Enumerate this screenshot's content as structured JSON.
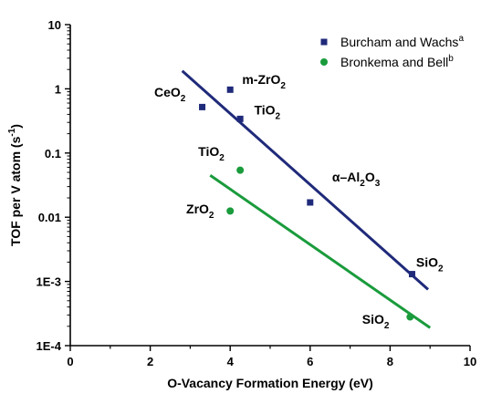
{
  "chart_data": {
    "type": "scatter",
    "xlabel": "O-Vacancy Formation Energy (eV)",
    "ylabel_main": "TOF per V atom (s",
    "ylabel_sup": "-1",
    "ylabel_end": ")",
    "xlim": [
      0,
      10
    ],
    "ylim": [
      0.0001,
      10
    ],
    "yscale": "log",
    "x_ticks": [
      0,
      2,
      4,
      6,
      8,
      10
    ],
    "x_tick_labels": [
      "0",
      "2",
      "4",
      "6",
      "8",
      "10"
    ],
    "y_ticks": [
      0.0001,
      0.001,
      0.01,
      0.1,
      1,
      10
    ],
    "y_tick_labels": [
      "1E-4",
      "1E-3",
      "0.01",
      "0.1",
      "1",
      "10"
    ],
    "legend": {
      "position": "top-right"
    },
    "series": [
      {
        "name": "Burcham and Wachs",
        "name_sup": "a",
        "color": "#1f2a7a",
        "marker": "square",
        "points": [
          {
            "x": 3.3,
            "y": 0.52
          },
          {
            "x": 4.0,
            "y": 0.97
          },
          {
            "x": 4.25,
            "y": 0.34
          },
          {
            "x": 6.0,
            "y": 0.017
          },
          {
            "x": 8.55,
            "y": 0.0013
          }
        ],
        "fit": {
          "x": [
            2.8,
            8.95
          ],
          "y": [
            1.9,
            0.00075
          ]
        }
      },
      {
        "name": "Bronkema and Bell",
        "name_sup": "b",
        "color": "#1a9b3c",
        "marker": "circle",
        "points": [
          {
            "x": 4.25,
            "y": 0.054
          },
          {
            "x": 4.0,
            "y": 0.0125
          },
          {
            "x": 8.5,
            "y": 0.00028
          }
        ],
        "fit": {
          "x": [
            3.5,
            9.0
          ],
          "y": [
            0.045,
            0.00019
          ]
        }
      }
    ],
    "annotations": [
      {
        "parts": [
          [
            "m-ZrO",
            ""
          ],
          [
            "2",
            "sub"
          ]
        ],
        "x": 4.3,
        "y": 1.2
      },
      {
        "parts": [
          [
            "CeO",
            ""
          ],
          [
            "2",
            "sub"
          ]
        ],
        "x": 2.1,
        "y": 0.75
      },
      {
        "parts": [
          [
            "TiO",
            ""
          ],
          [
            "2",
            "sub"
          ]
        ],
        "x": 4.6,
        "y": 0.4
      },
      {
        "parts": [
          [
            "TiO",
            ""
          ],
          [
            "2",
            "sub"
          ]
        ],
        "x": 3.2,
        "y": 0.09
      },
      {
        "parts": [
          [
            "α–Al",
            ""
          ],
          [
            "2",
            "sub"
          ],
          [
            "O",
            ""
          ],
          [
            "3",
            "sub"
          ]
        ],
        "x": 6.55,
        "y": 0.036
      },
      {
        "parts": [
          [
            "ZrO",
            ""
          ],
          [
            "2",
            "sub"
          ]
        ],
        "x": 2.9,
        "y": 0.0115
      },
      {
        "parts": [
          [
            "SiO",
            ""
          ],
          [
            "2",
            "sub"
          ]
        ],
        "x": 8.65,
        "y": 0.0017
      },
      {
        "parts": [
          [
            "SiO",
            ""
          ],
          [
            "2",
            "sub"
          ]
        ],
        "x": 7.3,
        "y": 0.00022
      }
    ]
  }
}
